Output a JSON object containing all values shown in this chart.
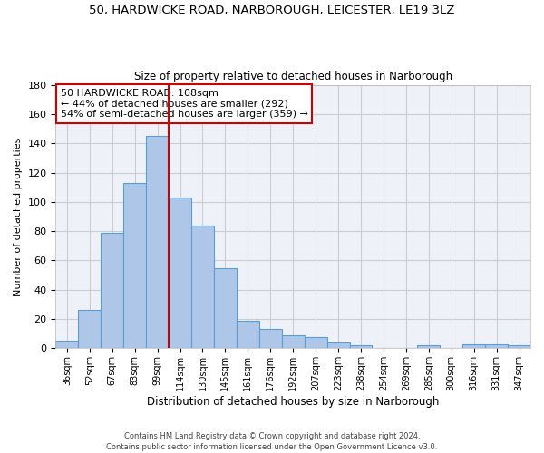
{
  "title1": "50, HARDWICKE ROAD, NARBOROUGH, LEICESTER, LE19 3LZ",
  "title2": "Size of property relative to detached houses in Narborough",
  "xlabel": "Distribution of detached houses by size in Narborough",
  "ylabel": "Number of detached properties",
  "categories": [
    "36sqm",
    "52sqm",
    "67sqm",
    "83sqm",
    "99sqm",
    "114sqm",
    "130sqm",
    "145sqm",
    "161sqm",
    "176sqm",
    "192sqm",
    "207sqm",
    "223sqm",
    "238sqm",
    "254sqm",
    "269sqm",
    "285sqm",
    "300sqm",
    "316sqm",
    "331sqm",
    "347sqm"
  ],
  "values": [
    5,
    26,
    79,
    113,
    145,
    103,
    84,
    55,
    19,
    13,
    9,
    8,
    4,
    2,
    0,
    0,
    2,
    0,
    3,
    3,
    2
  ],
  "bar_color": "#aec6e8",
  "bar_edge_color": "#5a9fd4",
  "vline_x": 4.5,
  "vline_color": "#cc0000",
  "annotation_line1": "50 HARDWICKE ROAD: 108sqm",
  "annotation_line2": "← 44% of detached houses are smaller (292)",
  "annotation_line3": "54% of semi-detached houses are larger (359) →",
  "annotation_box_color": "#ffffff",
  "annotation_box_edge": "#cc0000",
  "ylim": [
    0,
    180
  ],
  "yticks": [
    0,
    20,
    40,
    60,
    80,
    100,
    120,
    140,
    160,
    180
  ],
  "grid_color": "#cccccc",
  "bg_color": "#eef2f8",
  "footer1": "Contains HM Land Registry data © Crown copyright and database right 2024.",
  "footer2": "Contains public sector information licensed under the Open Government Licence v3.0."
}
